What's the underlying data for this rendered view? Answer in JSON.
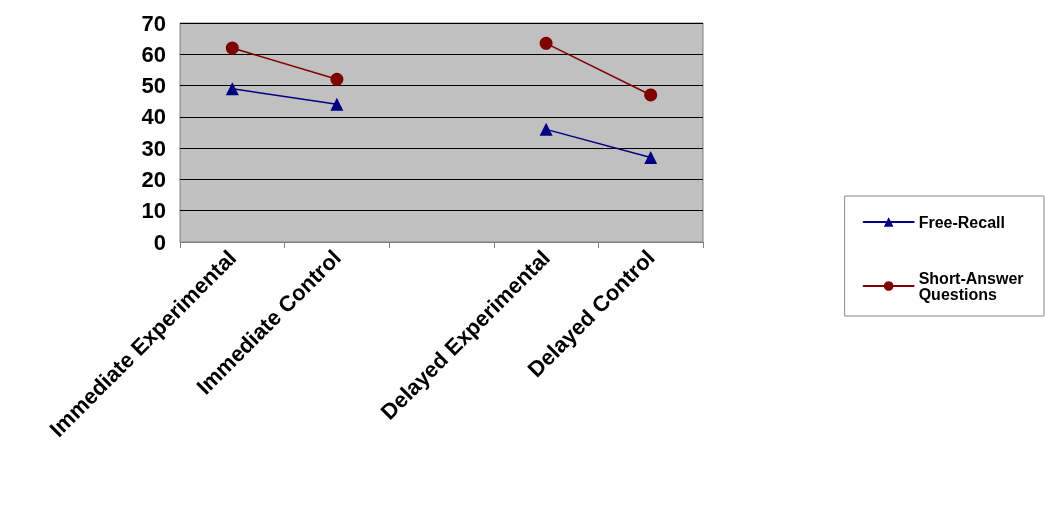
{
  "chart_data": {
    "type": "line",
    "categories": [
      "Immediate Experimental",
      "Immediate Control",
      null,
      "Delayed Experimental",
      "Delayed Control"
    ],
    "series": [
      {
        "name": "Free-Recall",
        "color": "#000080",
        "marker": "triangle",
        "values": [
          49,
          44,
          null,
          36,
          27
        ]
      },
      {
        "name": "Short-Answer Questions",
        "color": "#800000",
        "marker": "circle",
        "values": [
          62,
          52,
          null,
          63.5,
          47
        ]
      }
    ],
    "ylim": [
      0,
      70
    ],
    "yticks": [
      0,
      10,
      20,
      30,
      40,
      50,
      60,
      70
    ],
    "grid": "y",
    "legend": "right"
  }
}
